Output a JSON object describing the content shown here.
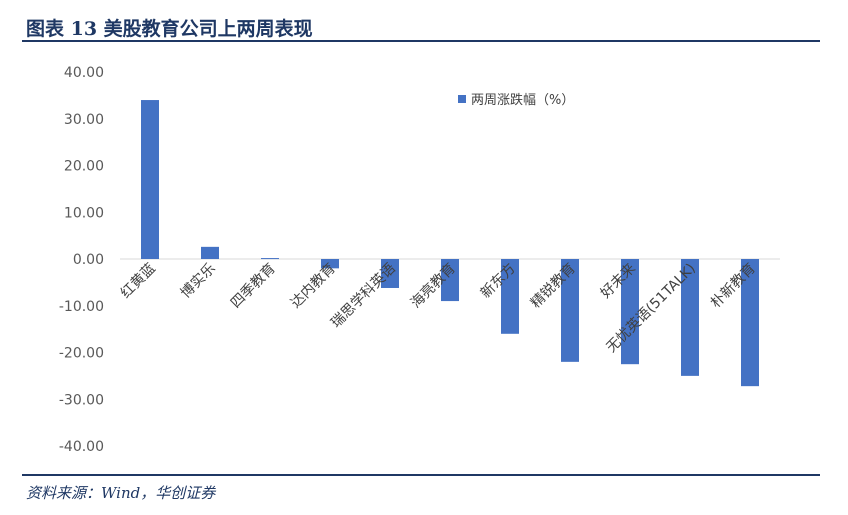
{
  "header": {
    "title": "图表 13   美股教育公司上两周表现"
  },
  "source": "资料来源：Wind，华创证券",
  "chart_data": {
    "type": "bar",
    "categories": [
      "红黄蓝",
      "博实乐",
      "四季教育",
      "达内教育",
      "瑞思学科英语",
      "海亮教育",
      "新东方",
      "精锐教育",
      "好未来",
      "无忧英语(51TALK)",
      "朴新教育"
    ],
    "series": [
      {
        "name": "两周涨跌幅（%）",
        "values": [
          34.0,
          2.6,
          0.2,
          -2.0,
          -6.2,
          -9.0,
          -16.0,
          -22.0,
          -22.5,
          -25.0,
          -27.2
        ]
      }
    ],
    "ylim": [
      -40,
      40
    ],
    "yticks": [
      "40.00",
      "30.00",
      "20.00",
      "10.00",
      "0.00",
      "-10.00",
      "-20.00",
      "-30.00",
      "-40.00"
    ],
    "bar_color": "#4472c4",
    "legend_position": "top-right",
    "grid": false
  }
}
